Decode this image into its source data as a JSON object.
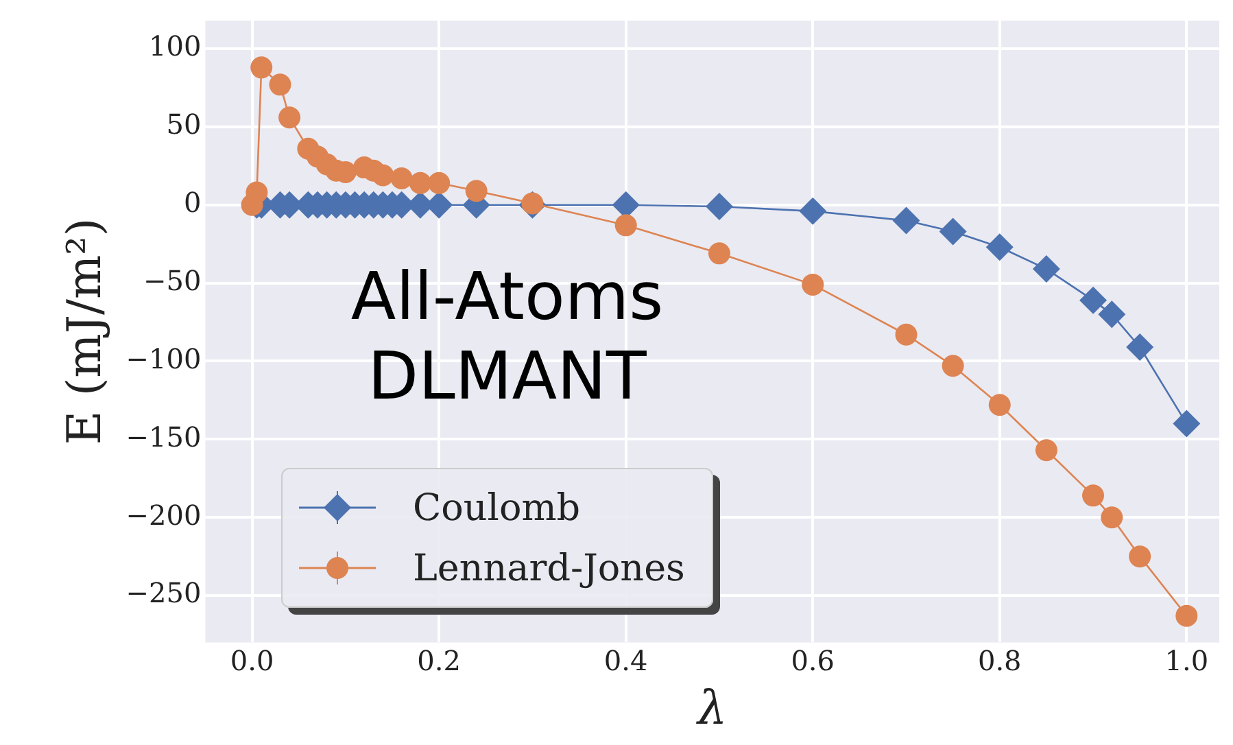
{
  "chart_data": {
    "type": "line",
    "xlabel": "λ",
    "ylabel": "E (mJ/m²)",
    "annotations": [
      "All-Atoms",
      "DLMANT"
    ],
    "xlim": [
      -0.05,
      1.035
    ],
    "ylim": [
      -280,
      118
    ],
    "xticks": [
      {
        "value": 0,
        "label": "0.0"
      },
      {
        "value": 0.2,
        "label": "0.2"
      },
      {
        "value": 0.4,
        "label": "0.4"
      },
      {
        "value": 0.6,
        "label": "0.6"
      },
      {
        "value": 0.8,
        "label": "0.8"
      },
      {
        "value": 1,
        "label": "1.0"
      }
    ],
    "yticks": [
      100,
      50,
      0,
      -50,
      -100,
      -150,
      -200,
      -250
    ],
    "grid": true,
    "legend": "bottom left",
    "line_style": "solid",
    "series": [
      {
        "name": "Coulomb",
        "color": "#4c72b0",
        "marker": "diamond",
        "x": [
          0.005,
          0.01,
          0.03,
          0.04,
          0.06,
          0.07,
          0.08,
          0.09,
          0.1,
          0.11,
          0.12,
          0.13,
          0.14,
          0.15,
          0.16,
          0.18,
          0.2,
          0.24,
          0.3,
          0.4,
          0.5,
          0.6,
          0.7,
          0.75,
          0.8,
          0.85,
          0.9,
          0.92,
          0.95,
          1.0
        ],
        "values": [
          0,
          0,
          0,
          0,
          0,
          0,
          0,
          0,
          0,
          0,
          0,
          0,
          0,
          0,
          0,
          0,
          0,
          0,
          0,
          0,
          -1,
          -4,
          -10,
          -17,
          -27,
          -41,
          -61,
          -70,
          -91,
          -140
        ]
      },
      {
        "name": "Lennard-Jones",
        "color": "#dd8452",
        "marker": "circle",
        "x": [
          0,
          0.005,
          0.01,
          0.03,
          0.04,
          0.06,
          0.07,
          0.08,
          0.09,
          0.1,
          0.12,
          0.13,
          0.14,
          0.16,
          0.18,
          0.2,
          0.24,
          0.3,
          0.4,
          0.5,
          0.6,
          0.7,
          0.75,
          0.8,
          0.85,
          0.9,
          0.92,
          0.95,
          1.0
        ],
        "values": [
          0,
          8,
          88,
          77,
          56,
          36,
          31,
          26,
          22,
          21,
          24,
          22,
          19,
          17,
          14,
          14,
          9,
          1,
          -13,
          -31,
          -51,
          -83,
          -103,
          -128,
          -157,
          -186,
          -200,
          -225,
          -263
        ]
      }
    ]
  }
}
